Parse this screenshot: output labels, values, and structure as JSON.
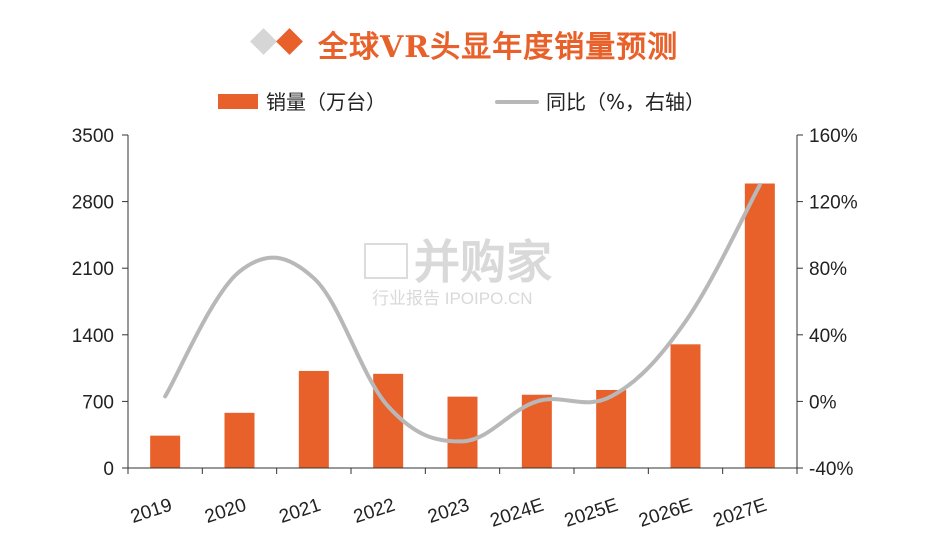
{
  "title": "全球VR头显年度销量预测",
  "watermark": {
    "brand": "并购家",
    "sub": "行业报告 IPOIPO.CN"
  },
  "legend": {
    "bar_label": "销量（万台）",
    "line_label": "同比（%，右轴）"
  },
  "colors": {
    "bar": "#e8602a",
    "line": "#b8b8b8",
    "axis": "#333333"
  },
  "chart_data": {
    "type": "bar",
    "title": "全球VR头显年度销量预测",
    "categories": [
      "2019",
      "2020",
      "2021",
      "2022",
      "2023",
      "2024E",
      "2025E",
      "2026E",
      "2027E"
    ],
    "series": [
      {
        "name": "销量（万台）",
        "type": "bar",
        "axis": "left",
        "values": [
          340,
          580,
          1020,
          990,
          750,
          770,
          820,
          1300,
          2990
        ]
      },
      {
        "name": "同比（%，右轴）",
        "type": "line",
        "axis": "right",
        "values": [
          3,
          78,
          74,
          -3,
          -24,
          0,
          3,
          48,
          130
        ]
      }
    ],
    "y_left": {
      "lim": [
        0,
        3500
      ],
      "ticks": [
        "0",
        "700",
        "1400",
        "2100",
        "2800",
        "3500"
      ]
    },
    "y_right": {
      "lim": [
        -40,
        160
      ],
      "ticks": [
        "-40%",
        "0%",
        "40%",
        "80%",
        "120%",
        "160%"
      ]
    },
    "legend_position": "top",
    "grid": false
  }
}
